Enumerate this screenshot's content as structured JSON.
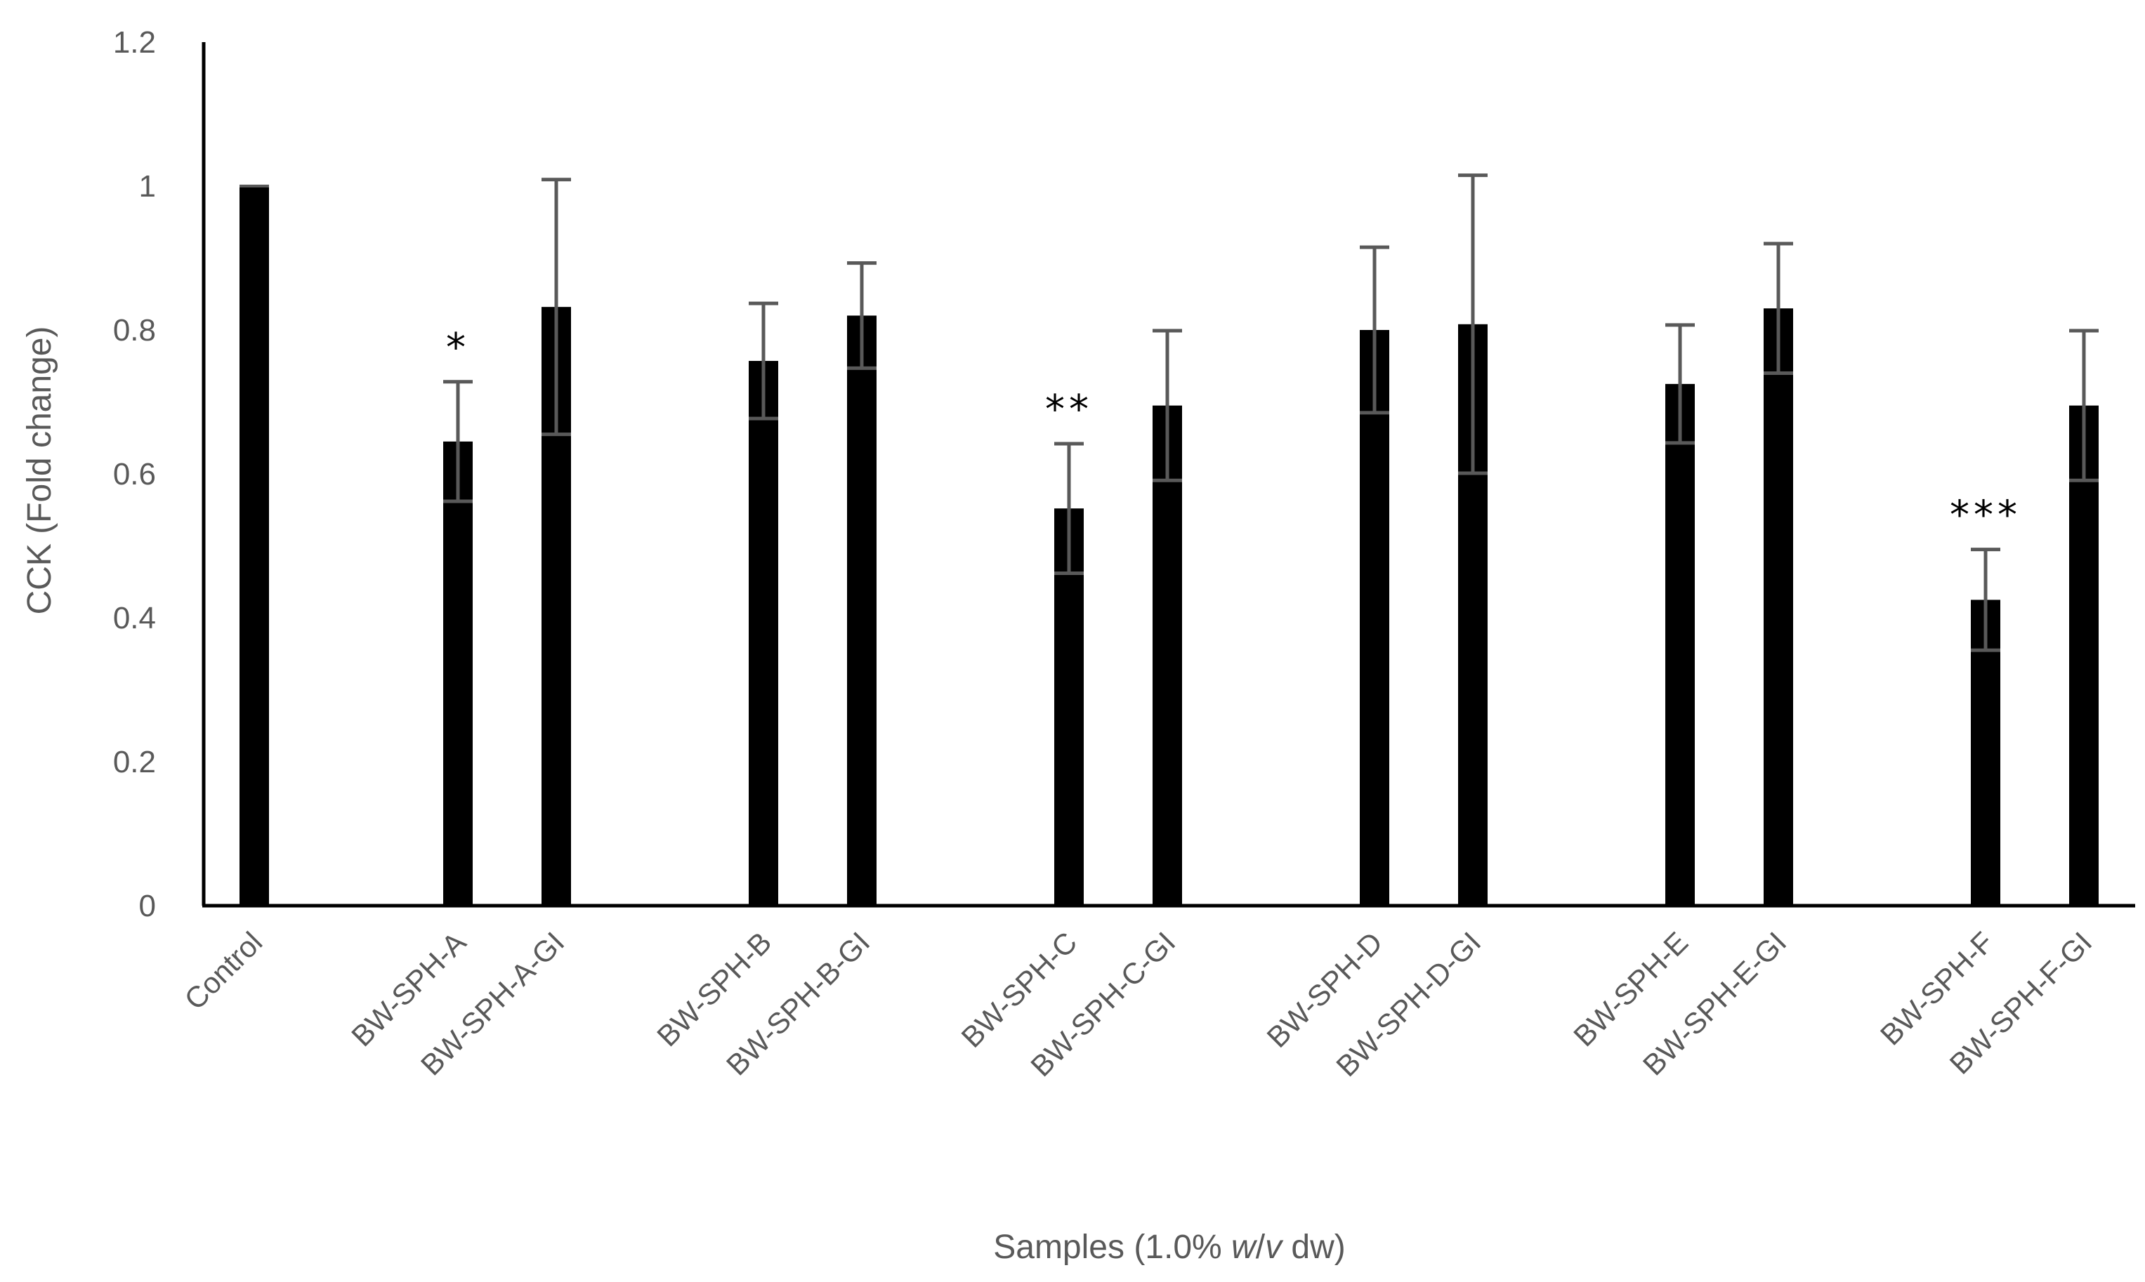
{
  "chart_data": {
    "type": "bar",
    "title": "",
    "xlabel_prefix": "Samples (1.0% ",
    "xlabel_italic_1": "w",
    "xlabel_slash": "/",
    "xlabel_italic_2": "v",
    "xlabel_suffix": " dw)",
    "ylabel": "CCK (Fold change)",
    "ylim": [
      0,
      1.2
    ],
    "yticks": [
      "0",
      "0.2",
      "0.4",
      "0.6",
      "0.8",
      "1",
      "1.2"
    ],
    "grid": false,
    "legend": "none",
    "categories": [
      "Control",
      "BW-SPH-A",
      "BW-SPH-A-GI",
      "BW-SPH-B",
      "BW-SPH-B-GI",
      "BW-SPH-C",
      "BW-SPH-C-GI",
      "BW-SPH-D",
      "BW-SPH-D-GI",
      "BW-SPH-E",
      "BW-SPH-E-GI",
      "BW-SPH-F",
      "BW-SPH-F-GI"
    ],
    "values": [
      1.0,
      0.645,
      0.832,
      0.757,
      0.82,
      0.552,
      0.695,
      0.8,
      0.808,
      0.725,
      0.83,
      0.425,
      0.695
    ],
    "errors": [
      0,
      0.083,
      0.177,
      0.08,
      0.073,
      0.09,
      0.104,
      0.115,
      0.207,
      0.082,
      0.09,
      0.07,
      0.104
    ],
    "significance": [
      "",
      "*",
      "",
      "",
      "",
      "**",
      "",
      "",
      "",
      "",
      "",
      "***",
      ""
    ],
    "bar_color": "#000000",
    "error_color": "#595959",
    "axis_color": "#000000"
  }
}
